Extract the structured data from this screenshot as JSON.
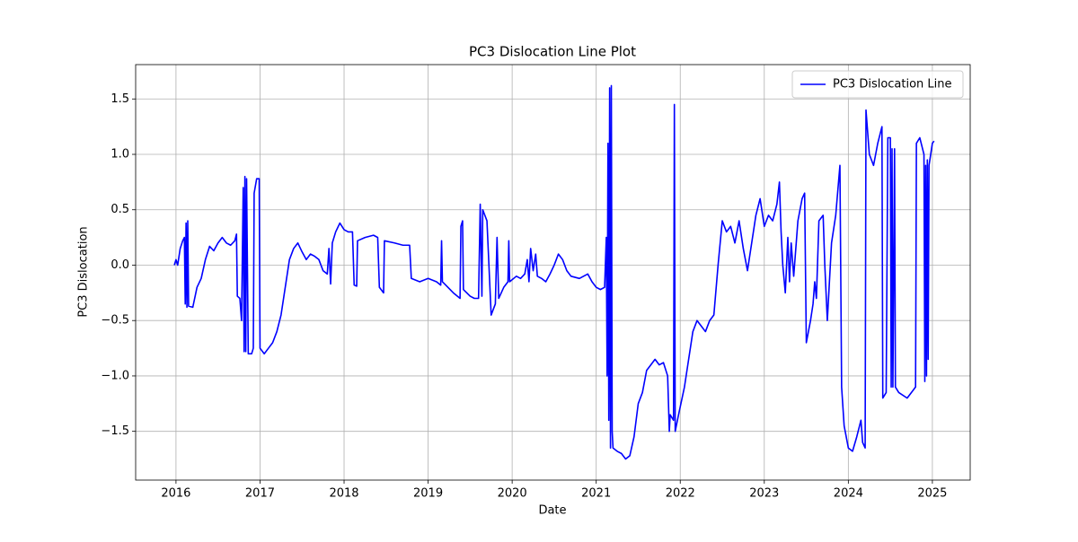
{
  "chart_data": {
    "type": "line",
    "title": "PC3 Dislocation Line Plot",
    "x_label": "Date",
    "y_label": "PC3 Dislocation",
    "x": [
      2015.98,
      2016.0,
      2016.02,
      2016.05,
      2016.08,
      2016.1,
      2016.11,
      2016.12,
      2016.13,
      2016.14,
      2016.15,
      2016.2,
      2016.25,
      2016.3,
      2016.35,
      2016.4,
      2016.45,
      2016.5,
      2016.55,
      2016.6,
      2016.65,
      2016.7,
      2016.72,
      2016.73,
      2016.76,
      2016.78,
      2016.8,
      2016.81,
      2016.82,
      2016.83,
      2016.84,
      2016.86,
      2016.9,
      2016.92,
      2016.93,
      2016.96,
      2016.99,
      2017.0,
      2017.05,
      2017.1,
      2017.15,
      2017.2,
      2017.25,
      2017.3,
      2017.35,
      2017.4,
      2017.45,
      2017.5,
      2017.55,
      2017.6,
      2017.65,
      2017.7,
      2017.75,
      2017.8,
      2017.82,
      2017.84,
      2017.86,
      2017.9,
      2017.95,
      2018.0,
      2018.05,
      2018.1,
      2018.12,
      2018.15,
      2018.16,
      2018.25,
      2018.35,
      2018.4,
      2018.42,
      2018.47,
      2018.48,
      2018.6,
      2018.7,
      2018.78,
      2018.8,
      2018.9,
      2019.0,
      2019.1,
      2019.15,
      2019.16,
      2019.17,
      2019.3,
      2019.38,
      2019.39,
      2019.41,
      2019.42,
      2019.5,
      2019.55,
      2019.6,
      2019.62,
      2019.64,
      2019.65,
      2019.7,
      2019.75,
      2019.8,
      2019.82,
      2019.84,
      2019.9,
      2019.95,
      2019.96,
      2019.97,
      2020.05,
      2020.1,
      2020.15,
      2020.18,
      2020.2,
      2020.22,
      2020.25,
      2020.28,
      2020.3,
      2020.35,
      2020.4,
      2020.45,
      2020.5,
      2020.55,
      2020.6,
      2020.65,
      2020.7,
      2020.8,
      2020.9,
      2020.95,
      2021.0,
      2021.05,
      2021.1,
      2021.12,
      2021.13,
      2021.14,
      2021.15,
      2021.16,
      2021.17,
      2021.18,
      2021.19,
      2021.2,
      2021.25,
      2021.3,
      2021.35,
      2021.4,
      2021.45,
      2021.5,
      2021.55,
      2021.6,
      2021.65,
      2021.7,
      2021.75,
      2021.8,
      2021.85,
      2021.87,
      2021.88,
      2021.92,
      2021.93,
      2021.94,
      2021.98,
      2022.05,
      2022.1,
      2022.15,
      2022.2,
      2022.25,
      2022.3,
      2022.35,
      2022.4,
      2022.45,
      2022.5,
      2022.55,
      2022.6,
      2022.65,
      2022.7,
      2022.75,
      2022.8,
      2022.85,
      2022.9,
      2022.95,
      2023.0,
      2023.05,
      2023.1,
      2023.15,
      2023.18,
      2023.2,
      2023.22,
      2023.25,
      2023.28,
      2023.3,
      2023.32,
      2023.35,
      2023.4,
      2023.45,
      2023.48,
      2023.5,
      2023.55,
      2023.58,
      2023.6,
      2023.62,
      2023.65,
      2023.7,
      2023.72,
      2023.75,
      2023.8,
      2023.85,
      2023.9,
      2023.92,
      2023.95,
      2024.0,
      2024.05,
      2024.1,
      2024.15,
      2024.17,
      2024.2,
      2024.21,
      2024.25,
      2024.3,
      2024.35,
      2024.4,
      2024.41,
      2024.45,
      2024.47,
      2024.5,
      2024.51,
      2024.52,
      2024.53,
      2024.55,
      2024.56,
      2024.6,
      2024.7,
      2024.75,
      2024.8,
      2024.81,
      2024.85,
      2024.9,
      2024.91,
      2024.92,
      2024.93,
      2024.94,
      2024.95,
      2024.96,
      2024.98,
      2025.0,
      2025.02
    ],
    "series": [
      {
        "name": "PC3 Dislocation Line",
        "color": "#0000ff",
        "values": [
          0.0,
          0.05,
          0.0,
          0.15,
          0.22,
          0.25,
          -0.35,
          0.38,
          -0.38,
          0.4,
          -0.37,
          -0.38,
          -0.2,
          -0.12,
          0.05,
          0.17,
          0.13,
          0.2,
          0.25,
          0.2,
          0.18,
          0.22,
          0.28,
          -0.28,
          -0.3,
          -0.5,
          0.7,
          -0.78,
          0.8,
          -0.78,
          0.78,
          -0.8,
          -0.8,
          -0.75,
          0.65,
          0.78,
          0.78,
          -0.75,
          -0.8,
          -0.75,
          -0.7,
          -0.6,
          -0.45,
          -0.2,
          0.05,
          0.15,
          0.2,
          0.12,
          0.05,
          0.1,
          0.08,
          0.05,
          -0.05,
          -0.08,
          0.15,
          -0.17,
          0.2,
          0.3,
          0.38,
          0.32,
          0.3,
          0.3,
          -0.18,
          -0.19,
          0.22,
          0.25,
          0.27,
          0.25,
          -0.2,
          -0.25,
          0.22,
          0.2,
          0.18,
          0.18,
          -0.12,
          -0.15,
          -0.12,
          -0.15,
          -0.18,
          0.22,
          -0.15,
          -0.25,
          -0.3,
          0.35,
          0.4,
          -0.22,
          -0.28,
          -0.3,
          -0.3,
          0.55,
          -0.28,
          0.5,
          0.4,
          -0.45,
          -0.35,
          0.25,
          -0.3,
          -0.2,
          -0.15,
          0.22,
          -0.15,
          -0.1,
          -0.12,
          -0.08,
          0.05,
          -0.15,
          0.15,
          -0.05,
          0.1,
          -0.1,
          -0.12,
          -0.15,
          -0.08,
          0.0,
          0.1,
          0.05,
          -0.05,
          -0.1,
          -0.12,
          -0.08,
          -0.15,
          -0.2,
          -0.22,
          -0.2,
          0.25,
          -1.0,
          1.1,
          -1.4,
          1.6,
          -1.65,
          1.62,
          -1.5,
          -1.65,
          -1.68,
          -1.7,
          -1.75,
          -1.72,
          -1.55,
          -1.25,
          -1.15,
          -0.95,
          -0.9,
          -0.85,
          -0.9,
          -0.88,
          -1.0,
          -1.5,
          -1.35,
          -1.4,
          1.45,
          -1.5,
          -1.35,
          -1.1,
          -0.85,
          -0.6,
          -0.5,
          -0.55,
          -0.6,
          -0.5,
          -0.45,
          0.0,
          0.4,
          0.3,
          0.35,
          0.2,
          0.4,
          0.15,
          -0.05,
          0.2,
          0.45,
          0.6,
          0.35,
          0.45,
          0.4,
          0.55,
          0.75,
          0.3,
          0.0,
          -0.25,
          0.25,
          -0.15,
          0.2,
          -0.1,
          0.4,
          0.6,
          0.65,
          -0.7,
          -0.5,
          -0.35,
          -0.15,
          -0.3,
          0.4,
          0.45,
          0.0,
          -0.5,
          0.2,
          0.45,
          0.9,
          -1.1,
          -1.45,
          -1.65,
          -1.68,
          -1.55,
          -1.4,
          -1.6,
          -1.65,
          1.4,
          1.0,
          0.9,
          1.1,
          1.25,
          -1.2,
          -1.15,
          1.15,
          1.15,
          -1.1,
          1.05,
          -1.1,
          1.05,
          -1.1,
          -1.15,
          -1.2,
          -1.15,
          -1.1,
          1.1,
          1.15,
          1.0,
          -1.05,
          0.9,
          -1.0,
          0.95,
          -0.85,
          0.9,
          1.0,
          1.1,
          1.12
        ]
      }
    ],
    "xlim": [
      2015.52,
      2025.45
    ],
    "xticks": [
      2016,
      2017,
      2018,
      2019,
      2020,
      2021,
      2022,
      2023,
      2024,
      2025
    ],
    "ylim": [
      -1.94,
      1.81
    ],
    "yticks": [
      {
        "value": -1.5,
        "label": "−1.5"
      },
      {
        "value": -1.0,
        "label": "−1.0"
      },
      {
        "value": -0.5,
        "label": "−0.5"
      },
      {
        "value": 0,
        "label": "0.0"
      },
      0.5,
      {
        "value": 1,
        "label": "1.0"
      },
      1.5
    ],
    "grid": true,
    "legend": "upper right"
  }
}
